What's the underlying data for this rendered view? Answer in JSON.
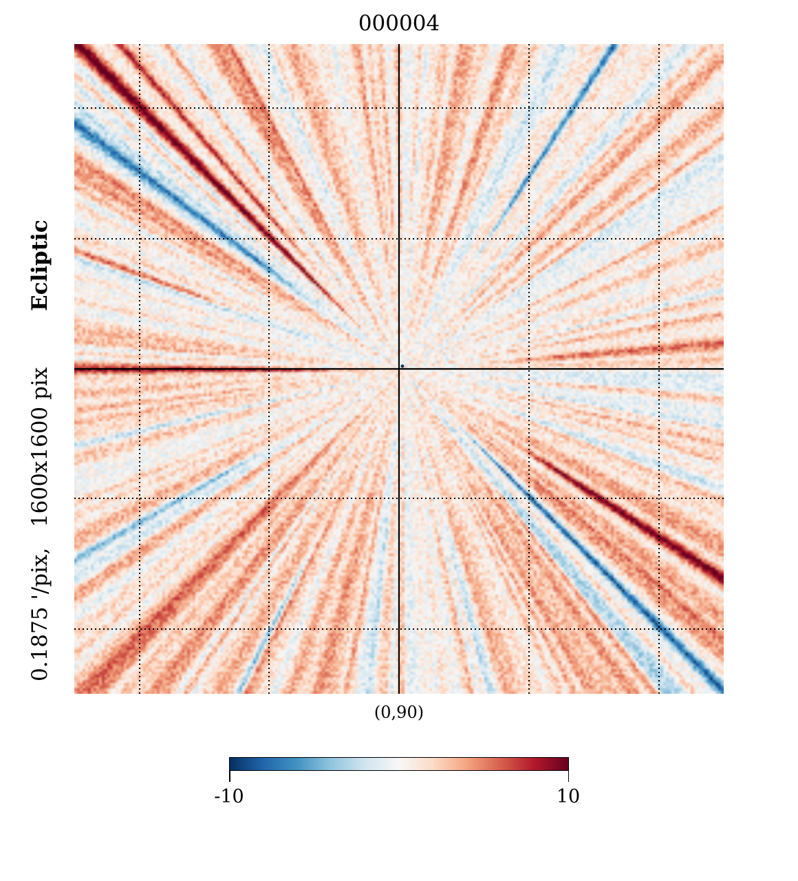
{
  "title": "000004",
  "center_label": "(0,90)",
  "ylabel": {
    "frame": "Ecliptic",
    "resolution_parts": [
      "0.1875 '/pix,",
      "1600x1600 pix"
    ]
  },
  "colorbar": {
    "cmap": "RdBu_r",
    "min_label": "-10",
    "max_label": "10",
    "colors": [
      "#053061",
      "#2166ac",
      "#4393c3",
      "#92c5de",
      "#d1e5f0",
      "#f7f7f7",
      "#fddbc7",
      "#f4a582",
      "#d6604d",
      "#b2182b",
      "#67001f"
    ]
  },
  "chart_data": {
    "type": "heatmap",
    "projection": "gnomonic",
    "title": "000004",
    "coord_system": "Ecliptic",
    "center": "(0,90)",
    "resolution_arcmin_per_pix": 0.1875,
    "size_pix": [
      1600,
      1600
    ],
    "colorbar": {
      "min": -10,
      "max": 10,
      "cmap": "RdBu_r"
    },
    "pattern": "radial streaks converging on map center; strong red diagonal streak upper-left, blue diagonal streak lower-right, positive (red) band along the horizontal axis",
    "graticule": "dotted, with solid central axes"
  }
}
